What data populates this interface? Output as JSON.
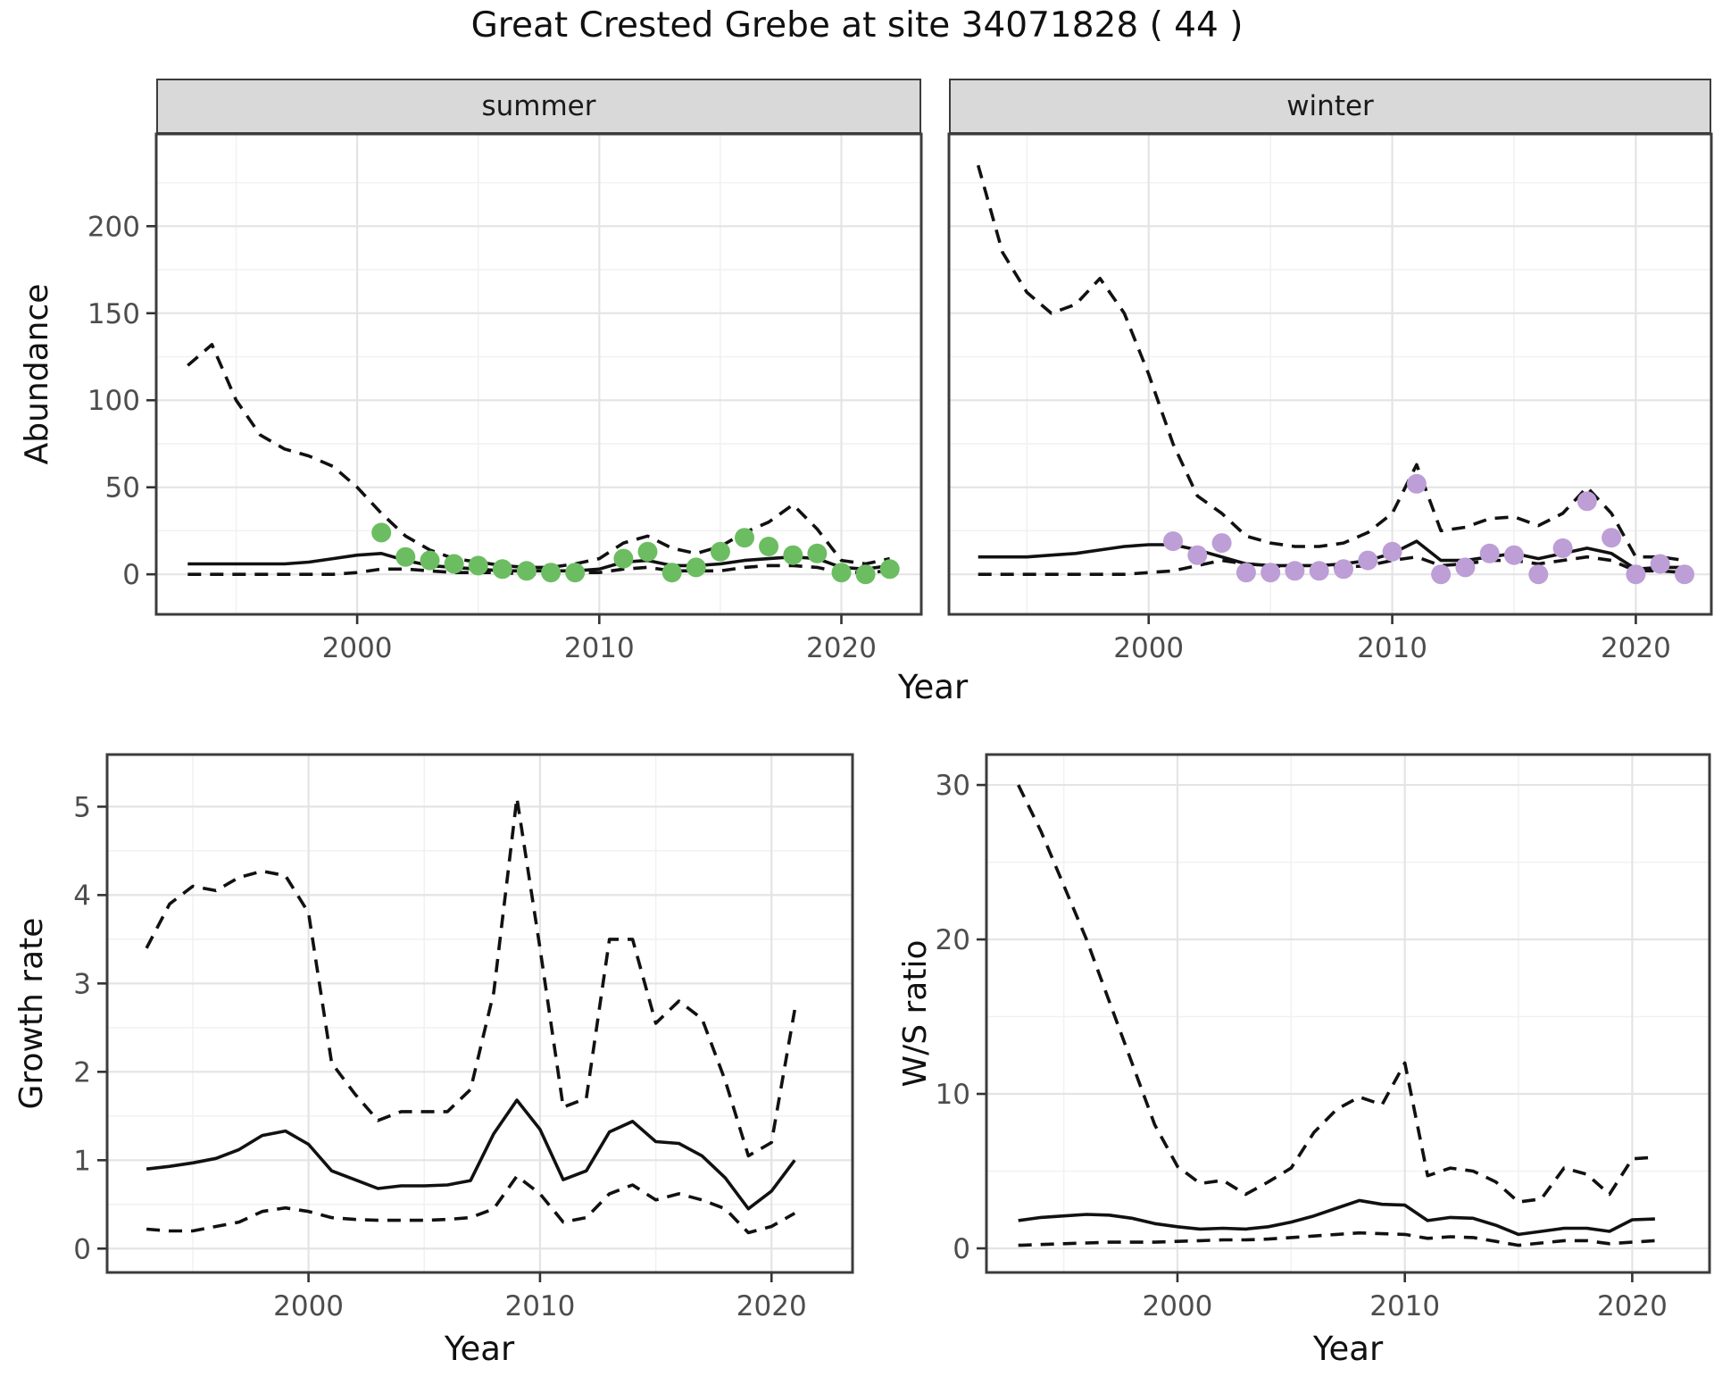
{
  "title": "Great Crested Grebe at site 34071828 ( 44 )",
  "facets": {
    "summer_label": "summer",
    "winter_label": "winter"
  },
  "axis_labels": {
    "abundance": "Abundance",
    "year_top": "Year",
    "growth_rate": "Growth rate",
    "year_bottom_left": "Year",
    "ws_ratio": "W/S ratio",
    "year_bottom_right": "Year"
  },
  "colors": {
    "summer_points": "#6cbd62",
    "winter_points": "#bd9ed6",
    "line": "#111111",
    "grid_major": "#e4e4e4",
    "grid_minor": "#f1f1f1",
    "panel_bg": "#ffffff",
    "panel_border": "#3c3c3c",
    "strip_bg": "#d9d9d9",
    "tick_mark": "#333333",
    "tick_label": "#4d4d4d"
  },
  "chart_data": [
    {
      "name": "abundance-summer",
      "type": "line",
      "facet": "summer",
      "ylabel": "Abundance",
      "xlabel": "Year",
      "x_ticks": [
        2000,
        2010,
        2020
      ],
      "x_minor": [
        1995,
        2005,
        2015
      ],
      "y_ticks": [
        0,
        50,
        100,
        150,
        200
      ],
      "y_minor": [
        25,
        75,
        125,
        175,
        225
      ],
      "years": [
        1993,
        1994,
        1995,
        1996,
        1997,
        1998,
        1999,
        2000,
        2001,
        2002,
        2003,
        2004,
        2005,
        2006,
        2007,
        2008,
        2009,
        2010,
        2011,
        2012,
        2013,
        2014,
        2015,
        2016,
        2017,
        2018,
        2019,
        2020,
        2021,
        2022
      ],
      "series": [
        {
          "name": "upper_ci",
          "style": "dashed",
          "values": [
            120,
            132,
            100,
            80,
            72,
            68,
            62,
            50,
            35,
            22,
            14,
            9,
            7,
            5,
            4,
            4,
            6,
            9,
            18,
            22,
            15,
            12,
            16,
            24,
            30,
            40,
            26,
            8,
            6,
            9
          ]
        },
        {
          "name": "median",
          "style": "solid",
          "values": [
            6,
            6,
            6,
            6,
            6,
            7,
            9,
            11,
            12,
            8,
            5,
            4,
            3,
            2,
            2,
            2,
            2,
            3,
            7,
            8,
            5,
            5,
            6,
            8,
            9,
            10,
            9,
            4,
            3,
            5
          ]
        },
        {
          "name": "lower_ci",
          "style": "dashed",
          "values": [
            0,
            0,
            0,
            0,
            0,
            0,
            0,
            1,
            3,
            3,
            2,
            1,
            1,
            1,
            0,
            0,
            1,
            1,
            3,
            4,
            2,
            2,
            2,
            4,
            5,
            5,
            4,
            1,
            1,
            2
          ]
        }
      ],
      "points": {
        "color_key": "summer_points",
        "years": [
          2001,
          2002,
          2003,
          2004,
          2005,
          2006,
          2007,
          2008,
          2009,
          2011,
          2012,
          2013,
          2014,
          2015,
          2016,
          2017,
          2018,
          2019,
          2020,
          2021,
          2022
        ],
        "values": [
          24,
          10,
          8,
          6,
          5,
          3,
          2,
          1,
          1,
          9,
          13,
          1,
          4,
          13,
          21,
          16,
          11,
          12,
          1,
          0,
          3
        ]
      }
    },
    {
      "name": "abundance-winter",
      "type": "line",
      "facet": "winter",
      "ylabel": "Abundance",
      "xlabel": "Year",
      "x_ticks": [
        2000,
        2010,
        2020
      ],
      "x_minor": [
        1995,
        2005,
        2015
      ],
      "y_ticks": [
        0,
        50,
        100,
        150,
        200
      ],
      "y_minor": [
        25,
        75,
        125,
        175,
        225
      ],
      "years": [
        1993,
        1994,
        1995,
        1996,
        1997,
        1998,
        1999,
        2000,
        2001,
        2002,
        2003,
        2004,
        2005,
        2006,
        2007,
        2008,
        2009,
        2010,
        2011,
        2012,
        2013,
        2014,
        2015,
        2016,
        2017,
        2018,
        2019,
        2020,
        2021,
        2022
      ],
      "series": [
        {
          "name": "upper_ci",
          "style": "dashed",
          "values": [
            235,
            185,
            162,
            150,
            155,
            170,
            150,
            115,
            75,
            45,
            35,
            22,
            18,
            16,
            16,
            18,
            24,
            35,
            63,
            25,
            27,
            32,
            33,
            28,
            35,
            50,
            35,
            10,
            10,
            8
          ]
        },
        {
          "name": "median",
          "style": "solid",
          "values": [
            10,
            10,
            10,
            11,
            12,
            14,
            16,
            17,
            17,
            14,
            10,
            6,
            5,
            5,
            5,
            6,
            8,
            12,
            19,
            8,
            8,
            10,
            12,
            9,
            12,
            15,
            12,
            3,
            4,
            4
          ]
        },
        {
          "name": "lower_ci",
          "style": "dashed",
          "values": [
            0,
            0,
            0,
            0,
            0,
            0,
            0,
            1,
            2,
            5,
            8,
            6,
            5,
            4,
            4,
            4,
            5,
            8,
            10,
            5,
            6,
            8,
            8,
            6,
            8,
            10,
            8,
            2,
            2,
            1
          ]
        }
      ],
      "points": {
        "color_key": "winter_points",
        "years": [
          2001,
          2002,
          2003,
          2004,
          2005,
          2006,
          2007,
          2008,
          2009,
          2010,
          2011,
          2012,
          2013,
          2014,
          2015,
          2016,
          2017,
          2018,
          2019,
          2020,
          2021,
          2022
        ],
        "values": [
          19,
          11,
          18,
          1,
          1,
          2,
          2,
          3,
          8,
          13,
          52,
          0,
          4,
          12,
          11,
          0,
          15,
          42,
          21,
          0,
          6,
          0
        ]
      }
    },
    {
      "name": "growth-rate",
      "type": "line",
      "ylabel": "Growth rate",
      "xlabel": "Year",
      "x_ticks": [
        2000,
        2010,
        2020
      ],
      "x_minor": [
        1995,
        2005,
        2015
      ],
      "y_ticks": [
        0,
        1,
        2,
        3,
        4,
        5
      ],
      "y_minor": [
        0.5,
        1.5,
        2.5,
        3.5,
        4.5
      ],
      "years": [
        1993,
        1994,
        1995,
        1996,
        1997,
        1998,
        1999,
        2000,
        2001,
        2002,
        2003,
        2004,
        2005,
        2006,
        2007,
        2008,
        2009,
        2010,
        2011,
        2012,
        2013,
        2014,
        2015,
        2016,
        2017,
        2018,
        2019,
        2020,
        2021
      ],
      "series": [
        {
          "name": "upper_ci",
          "style": "dashed",
          "values": [
            3.4,
            3.9,
            4.1,
            4.05,
            4.2,
            4.27,
            4.22,
            3.8,
            2.1,
            1.75,
            1.45,
            1.55,
            1.55,
            1.55,
            1.8,
            2.9,
            5.1,
            3.4,
            1.6,
            1.7,
            3.5,
            3.5,
            2.55,
            2.8,
            2.6,
            1.9,
            1.05,
            1.2,
            2.7
          ]
        },
        {
          "name": "median",
          "style": "solid",
          "values": [
            0.9,
            0.93,
            0.97,
            1.02,
            1.12,
            1.28,
            1.33,
            1.18,
            0.88,
            0.78,
            0.68,
            0.71,
            0.71,
            0.72,
            0.77,
            1.3,
            1.68,
            1.35,
            0.78,
            0.88,
            1.32,
            1.44,
            1.21,
            1.19,
            1.05,
            0.8,
            0.45,
            0.65,
            1.0
          ]
        },
        {
          "name": "lower_ci",
          "style": "dashed",
          "values": [
            0.22,
            0.2,
            0.2,
            0.25,
            0.3,
            0.42,
            0.46,
            0.42,
            0.35,
            0.33,
            0.32,
            0.32,
            0.32,
            0.33,
            0.35,
            0.45,
            0.82,
            0.62,
            0.3,
            0.35,
            0.62,
            0.72,
            0.55,
            0.62,
            0.55,
            0.45,
            0.18,
            0.25,
            0.4
          ]
        }
      ]
    },
    {
      "name": "ws-ratio",
      "type": "line",
      "ylabel": "W/S ratio",
      "xlabel": "Year",
      "x_ticks": [
        2000,
        2010,
        2020
      ],
      "x_minor": [
        1995,
        2005,
        2015
      ],
      "y_ticks": [
        0,
        10,
        20,
        30
      ],
      "y_minor": [
        5,
        15,
        25
      ],
      "years": [
        1993,
        1994,
        1995,
        1996,
        1997,
        1998,
        1999,
        2000,
        2001,
        2002,
        2003,
        2004,
        2005,
        2006,
        2007,
        2008,
        2009,
        2010,
        2011,
        2012,
        2013,
        2014,
        2015,
        2016,
        2017,
        2018,
        2019,
        2020,
        2021
      ],
      "series": [
        {
          "name": "upper_ci",
          "style": "dashed",
          "values": [
            30,
            27,
            23.5,
            20,
            16,
            12,
            8,
            5.3,
            4.2,
            4.4,
            3.5,
            4.3,
            5.2,
            7.5,
            9,
            9.8,
            9.3,
            12,
            4.7,
            5.2,
            5.0,
            4.3,
            3.0,
            3.2,
            5.2,
            4.8,
            3.5,
            5.8,
            5.9
          ]
        },
        {
          "name": "median",
          "style": "solid",
          "values": [
            1.8,
            2.0,
            2.1,
            2.2,
            2.15,
            1.95,
            1.6,
            1.4,
            1.25,
            1.3,
            1.25,
            1.4,
            1.7,
            2.1,
            2.6,
            3.1,
            2.85,
            2.8,
            1.8,
            2.0,
            1.95,
            1.5,
            0.9,
            1.1,
            1.3,
            1.3,
            1.1,
            1.85,
            1.9
          ]
        },
        {
          "name": "lower_ci",
          "style": "dashed",
          "values": [
            0.2,
            0.25,
            0.3,
            0.35,
            0.4,
            0.4,
            0.4,
            0.45,
            0.5,
            0.55,
            0.55,
            0.6,
            0.7,
            0.8,
            0.9,
            1.0,
            0.95,
            0.9,
            0.65,
            0.75,
            0.7,
            0.45,
            0.2,
            0.35,
            0.5,
            0.5,
            0.3,
            0.4,
            0.5
          ]
        }
      ]
    }
  ]
}
